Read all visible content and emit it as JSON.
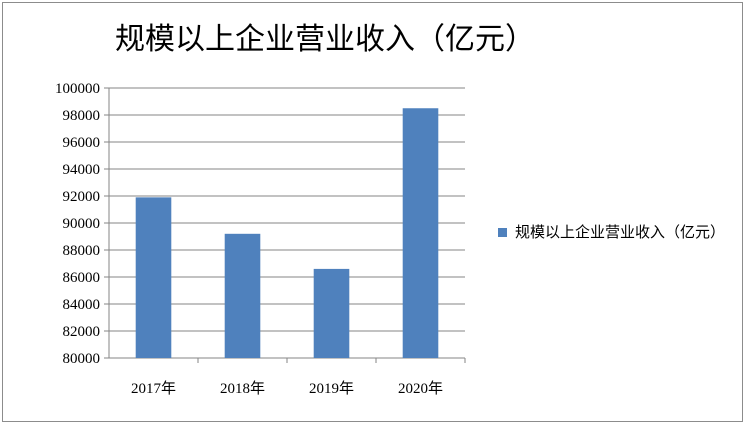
{
  "chart_data": {
    "type": "bar",
    "title": "规模以上企业营业收入（亿元）",
    "categories": [
      "2017年",
      "2018年",
      "2019年",
      "2020年"
    ],
    "series": [
      {
        "name": "规模以上企业营业收入（亿元）",
        "values": [
          91900,
          89200,
          86600,
          98500
        ],
        "color": "#4f81bd"
      }
    ],
    "ylim": [
      80000,
      100000
    ],
    "yticks": [
      80000,
      82000,
      84000,
      86000,
      88000,
      90000,
      92000,
      94000,
      96000,
      98000,
      100000
    ],
    "grid": true,
    "legend": "right"
  }
}
